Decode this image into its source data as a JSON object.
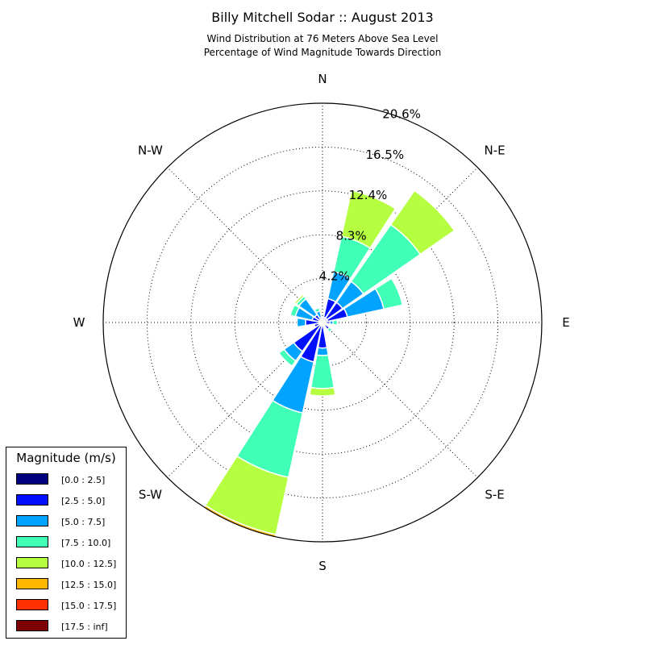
{
  "title": "Billy Mitchell Sodar :: August 2013",
  "subtitle": [
    "Wind Distribution at 76 Meters Above Sea Level",
    "Percentage of Wind Magnitude Towards Direction"
  ],
  "chart_data": {
    "type": "windrose",
    "title": "Billy Mitchell Sodar :: August 2013",
    "directions": [
      "N",
      "NNE",
      "NE",
      "ENE",
      "E",
      "ESE",
      "SE",
      "SSE",
      "S",
      "SSW",
      "SW",
      "WSW",
      "W",
      "WNW",
      "NW",
      "NNW"
    ],
    "compass_labels": [
      "N",
      "N-E",
      "E",
      "S-E",
      "S",
      "S-W",
      "W",
      "N-W"
    ],
    "ring_labels": [
      "4.2%",
      "8.3%",
      "12.4%",
      "16.5%",
      "20.6%"
    ],
    "rmax": 20.6,
    "grid": true,
    "legend": {
      "title": "Magnitude (m/s)",
      "placement": "bottom-left",
      "bins": [
        "[0.0 : 2.5]",
        "[2.5 : 5.0]",
        "[5.0 : 7.5]",
        "[7.5 : 10.0]",
        "[10.0 : 12.5]",
        "[12.5 : 15.0]",
        "[15.0 : 17.5]",
        "[17.5 : inf]"
      ],
      "colors": [
        "#00007f",
        "#0010ff",
        "#00a4ff",
        "#40ffb6",
        "#b6ff40",
        "#ffb800",
        "#ff3000",
        "#7f0000"
      ]
    },
    "series": [
      {
        "direction": "N",
        "values": [
          0.0,
          0.1,
          0.2,
          0.1,
          0.0,
          0.0,
          0.0,
          0.0
        ]
      },
      {
        "direction": "NNE",
        "values": [
          0.5,
          1.8,
          2.6,
          3.4,
          4.4,
          0.0,
          0.0,
          0.0
        ]
      },
      {
        "direction": "NE",
        "values": [
          0.5,
          1.8,
          2.4,
          6.5,
          3.9,
          0.0,
          0.0,
          0.0
        ]
      },
      {
        "direction": "ENE",
        "values": [
          0.5,
          1.9,
          3.5,
          1.8,
          0.0,
          0.0,
          0.0,
          0.0
        ]
      },
      {
        "direction": "E",
        "values": [
          0.3,
          0.4,
          0.3,
          0.4,
          0.0,
          0.0,
          0.0,
          0.0
        ]
      },
      {
        "direction": "ESE",
        "values": [
          0.2,
          0.0,
          0.0,
          0.0,
          0.0,
          0.0,
          0.0,
          0.0
        ]
      },
      {
        "direction": "SE",
        "values": [
          0.3,
          0.5,
          0.0,
          0.3,
          0.0,
          0.0,
          0.0,
          0.0
        ]
      },
      {
        "direction": "SSE",
        "values": [
          0.2,
          0.2,
          0.0,
          0.0,
          0.0,
          0.0,
          0.0,
          0.0
        ]
      },
      {
        "direction": "S",
        "values": [
          0.3,
          2.1,
          0.7,
          3.1,
          0.7,
          0.0,
          0.0,
          0.0
        ]
      },
      {
        "direction": "SSW",
        "values": [
          0.3,
          3.5,
          4.9,
          6.2,
          5.5,
          0.3,
          0.0,
          0.0
        ]
      },
      {
        "direction": "SW",
        "values": [
          0.2,
          3.1,
          1.1,
          0.6,
          0.0,
          0.0,
          0.0,
          0.0
        ]
      },
      {
        "direction": "WSW",
        "values": [
          0.2,
          0.6,
          0.0,
          0.0,
          0.0,
          0.0,
          0.0,
          0.0
        ]
      },
      {
        "direction": "W",
        "values": [
          0.3,
          1.3,
          0.8,
          0.0,
          0.0,
          0.0,
          0.0,
          0.0
        ]
      },
      {
        "direction": "WNW",
        "values": [
          0.3,
          0.7,
          1.6,
          0.5,
          0.0,
          0.0,
          0.0,
          0.0
        ]
      },
      {
        "direction": "NW",
        "values": [
          0.3,
          0.6,
          1.8,
          0.3,
          0.2,
          0.0,
          0.0,
          0.0
        ]
      },
      {
        "direction": "NNW",
        "values": [
          0.3,
          0.2,
          0.6,
          0.3,
          0.0,
          0.0,
          0.0,
          0.0
        ]
      }
    ]
  }
}
